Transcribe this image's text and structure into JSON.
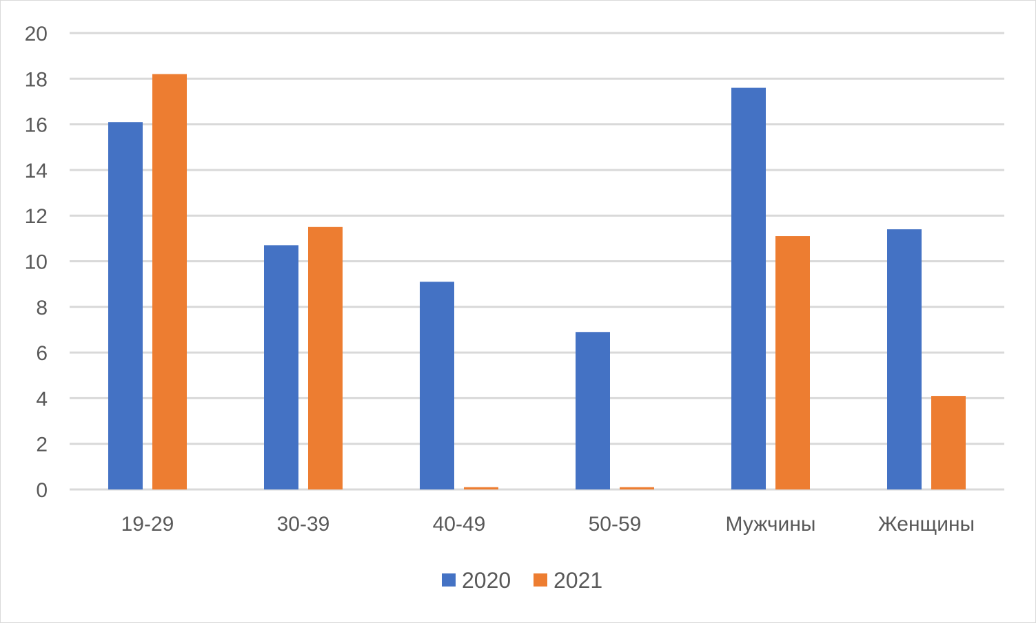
{
  "chart_data": {
    "type": "bar",
    "categories": [
      "19-29",
      "30-39",
      "40-49",
      "50-59",
      "Мужчины",
      "Женщины"
    ],
    "series": [
      {
        "name": "2020",
        "color": "#4472C4",
        "values": [
          16.1,
          10.7,
          9.1,
          6.9,
          17.6,
          11.4
        ]
      },
      {
        "name": "2021",
        "color": "#ED7D31",
        "values": [
          18.2,
          11.5,
          0.1,
          0.1,
          11.1,
          4.1
        ]
      }
    ],
    "ylim": [
      0,
      20
    ],
    "yticks": [
      0,
      2,
      4,
      6,
      8,
      10,
      12,
      14,
      16,
      18,
      20
    ],
    "grid": true,
    "legend_position": "bottom",
    "title": "",
    "xlabel": "",
    "ylabel": ""
  }
}
